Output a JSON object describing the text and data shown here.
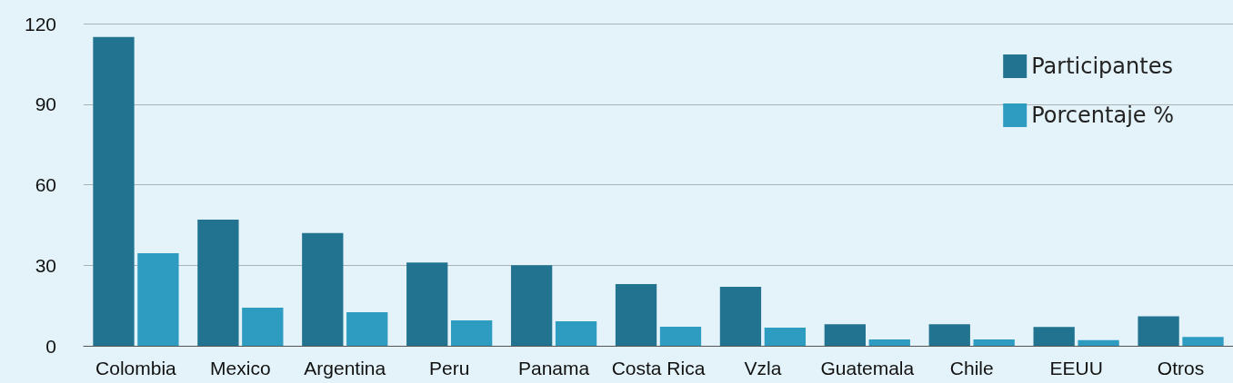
{
  "chart_data": {
    "type": "bar",
    "categories": [
      "Colombia",
      "Mexico",
      "Argentina",
      "Peru",
      "Panama",
      "Costa Rica",
      "Vzla",
      "Guatemala",
      "Chile",
      "EEUU",
      "Otros"
    ],
    "series": [
      {
        "name": "Participantes",
        "color": "#217390",
        "values": [
          115,
          47,
          42,
          31,
          30,
          23,
          22,
          8,
          8,
          7,
          11
        ]
      },
      {
        "name": "Porcentaje %",
        "color": "#2e9bc1",
        "values": [
          34.5,
          14.2,
          12.5,
          9.5,
          9.1,
          7.1,
          6.8,
          2.4,
          2.4,
          2.1,
          3.3
        ]
      }
    ],
    "ylim": [
      0,
      120
    ],
    "yticks": [
      0,
      30,
      60,
      90,
      120
    ],
    "grid": "y",
    "legend": "top right"
  }
}
